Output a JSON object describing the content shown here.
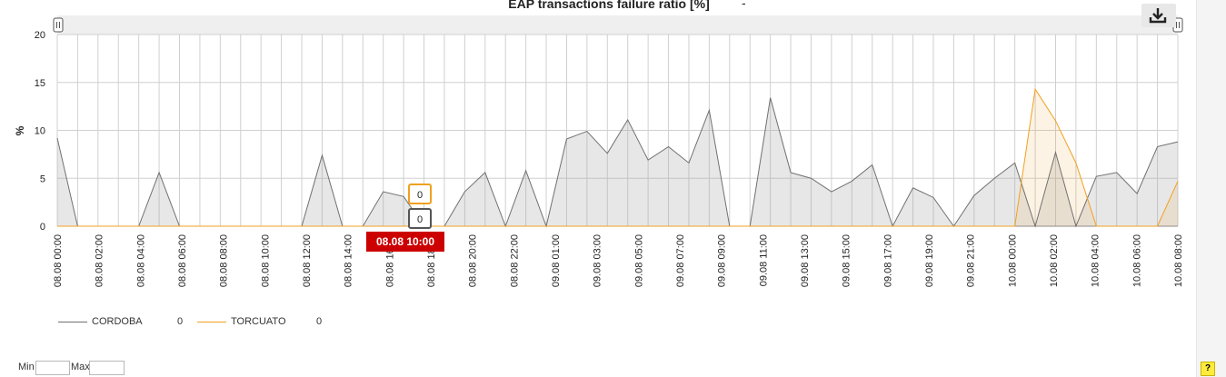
{
  "chart_data": {
    "type": "area",
    "title": "EAP transactions failure ratio [%]",
    "title_suffix": "-",
    "ylabel": "%",
    "xlabel": "",
    "ylim": [
      0,
      20
    ],
    "yticks": [
      0,
      5,
      10,
      15,
      20
    ],
    "grid": true,
    "legend_position": "bottom-left",
    "x_tick_labels": [
      "08.08 00:00",
      "08.08 02:00",
      "08.08 04:00",
      "08.08 06:00",
      "08.08 08:00",
      "08.08 10:00",
      "08.08 12:00",
      "08.08 14:00",
      "08.08 16:00",
      "08.08 18:00",
      "08.08 20:00",
      "08.08 22:00",
      "09.08 01:00",
      "09.08 03:00",
      "09.08 05:00",
      "09.08 07:00",
      "09.08 09:00",
      "09.08 11:00",
      "09.08 13:00",
      "09.08 15:00",
      "09.08 17:00",
      "09.08 19:00",
      "09.08 21:00",
      "10.08 00:00",
      "10.08 02:00",
      "10.08 04:00",
      "10.08 06:00",
      "10.08 08:00"
    ],
    "series": [
      {
        "name": "CORDOBA",
        "color": "#707070",
        "fill": "rgba(160,160,160,0.25)",
        "legend_value": "0",
        "values": [
          9.2,
          0,
          0,
          0,
          0,
          5.6,
          0,
          0,
          0,
          0,
          0,
          0,
          0,
          7.4,
          0,
          0,
          3.6,
          3.1,
          0,
          0,
          3.6,
          5.6,
          0,
          5.8,
          0,
          9.1,
          9.9,
          7.6,
          11.1,
          6.9,
          8.3,
          6.6,
          12.1,
          0,
          0,
          13.4,
          5.6,
          5,
          3.6,
          4.7,
          6.4,
          0,
          4,
          3,
          0,
          3.2,
          5,
          6.6,
          0,
          7.7,
          0,
          5.2,
          5.6,
          3.4,
          8.3,
          8.8
        ]
      },
      {
        "name": "TORCUATO",
        "color": "#f0a020",
        "fill": "rgba(240,160,32,0.12)",
        "legend_value": "0",
        "values": [
          0,
          0,
          0,
          0,
          0,
          0,
          0,
          0,
          0,
          0,
          0,
          0,
          0,
          0,
          0,
          0,
          0,
          0,
          0,
          0,
          0,
          0,
          0,
          0,
          0,
          0,
          0,
          0,
          0,
          0,
          0,
          0,
          0,
          0,
          0,
          0,
          0,
          0,
          0,
          0,
          0,
          0,
          0,
          0,
          0,
          0,
          0,
          0,
          14.3,
          11,
          6.6,
          0,
          0,
          0,
          0,
          4.7
        ]
      }
    ],
    "tooltip": {
      "label": "08.08 10:00",
      "values": [
        {
          "series": "TORCUATO",
          "value": "0"
        },
        {
          "series": "CORDOBA",
          "value": "0"
        }
      ]
    }
  },
  "controls": {
    "download_icon": "download-icon",
    "min_label": "Min",
    "max_label": "Max",
    "min_value": "",
    "max_value": "",
    "help_label": "?"
  }
}
